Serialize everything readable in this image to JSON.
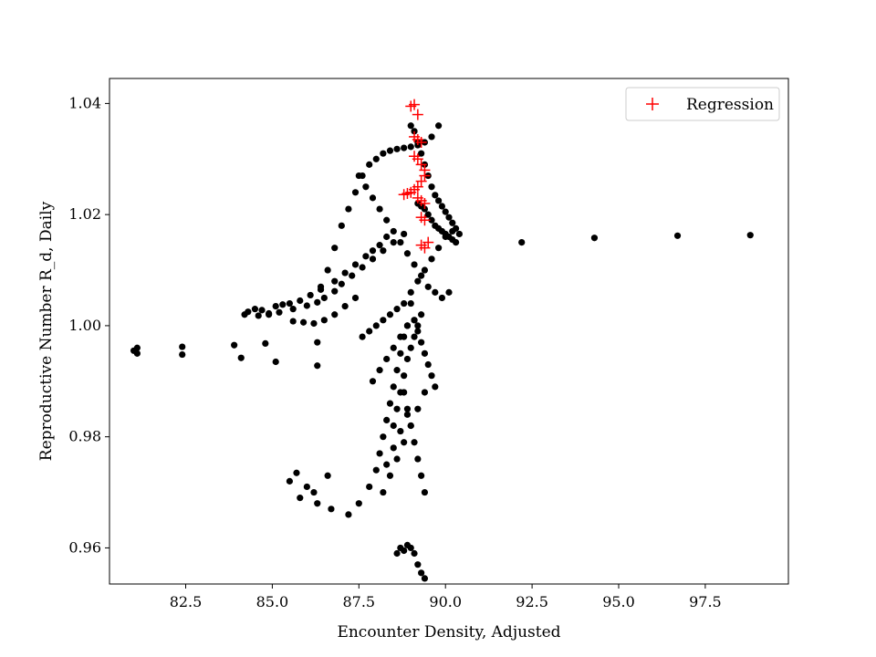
{
  "chart_data": {
    "type": "scatter",
    "xlabel": "Encounter Density, Adjusted",
    "ylabel": "Reproductive Number R_d, Daily",
    "xlim": [
      80.3,
      99.9
    ],
    "ylim": [
      0.9535,
      1.0445
    ],
    "xticks": [
      82.5,
      85.0,
      87.5,
      90.0,
      92.5,
      95.0,
      97.5
    ],
    "xtick_labels": [
      "82.5",
      "85.0",
      "87.5",
      "90.0",
      "92.5",
      "95.0",
      "97.5"
    ],
    "yticks": [
      0.96,
      0.98,
      1.0,
      1.02,
      1.04
    ],
    "ytick_labels": [
      "0.96",
      "0.98",
      "1.00",
      "1.02",
      "1.04"
    ],
    "legend": {
      "position": "upper-right",
      "entries": [
        {
          "label": "Regression",
          "color": "#ff0000",
          "marker": "+"
        }
      ]
    },
    "grid": false,
    "series": [
      {
        "marker": "dot",
        "color": "#000000",
        "x": [
          81.0,
          81.1,
          81.1,
          82.4,
          82.4,
          83.9,
          84.1,
          84.8,
          85.1,
          86.3,
          86.3,
          84.2,
          84.3,
          84.5,
          84.7,
          84.9,
          85.1,
          85.3,
          85.5,
          85.8,
          86.1,
          86.4,
          86.8,
          87.1,
          87.4,
          87.7,
          87.9,
          88.1,
          88.3,
          84.6,
          84.9,
          85.2,
          85.6,
          86.0,
          86.3,
          86.5,
          86.8,
          87.0,
          87.3,
          87.6,
          87.9,
          88.2,
          88.5,
          88.8,
          85.6,
          85.9,
          86.2,
          86.5,
          86.8,
          87.1,
          87.4,
          87.5,
          87.7,
          87.9,
          88.1,
          88.3,
          88.5,
          88.7,
          88.9,
          89.1,
          89.3,
          89.5,
          89.7,
          89.9,
          90.1,
          86.4,
          86.6,
          86.8,
          87.0,
          87.2,
          87.4,
          87.6,
          87.8,
          88.0,
          88.2,
          88.4,
          88.6,
          88.8,
          89.0,
          89.2,
          89.4,
          89.6,
          89.8,
          87.6,
          87.8,
          88.0,
          88.2,
          88.4,
          88.6,
          88.8,
          89.0,
          89.2,
          89.4,
          89.6,
          89.8,
          90.0,
          90.2,
          85.5,
          85.8,
          86.2,
          86.6,
          86.3,
          86.0,
          85.7,
          86.7,
          87.2,
          87.5,
          87.8,
          88.0,
          88.1,
          88.2,
          88.3,
          88.4,
          88.5,
          88.6,
          88.7,
          88.8,
          88.9,
          88.6,
          88.7,
          88.8,
          88.9,
          89.0,
          89.1,
          89.2,
          89.3,
          89.4,
          89.0,
          89.1,
          89.2,
          89.3,
          89.4,
          89.5,
          89.6,
          89.7,
          89.8,
          89.9,
          90.0,
          90.1,
          90.2,
          90.3,
          90.4,
          89.2,
          89.3,
          89.4,
          89.5,
          89.6,
          89.7,
          89.8,
          89.9,
          90.0,
          90.1,
          90.2,
          90.3,
          89.0,
          89.1,
          89.2,
          89.3,
          89.4,
          89.5,
          89.6,
          89.7,
          88.5,
          88.6,
          88.7,
          88.8,
          88.9,
          89.0,
          89.1,
          89.2,
          89.3,
          88.8,
          88.9,
          89.0,
          89.1,
          89.2,
          89.3,
          89.4,
          88.2,
          88.4,
          88.6,
          88.8,
          89.0,
          89.2,
          89.4,
          87.9,
          88.1,
          88.3,
          88.5,
          88.7,
          88.9,
          89.1,
          88.3,
          88.5,
          88.7,
          88.9,
          92.2,
          94.3,
          96.7,
          98.8
        ],
        "y": [
          0.9955,
          0.996,
          0.995,
          0.9962,
          0.9948,
          0.9965,
          0.9942,
          0.9968,
          0.9935,
          0.997,
          0.9928,
          1.002,
          1.0025,
          1.003,
          1.0028,
          1.0022,
          1.0035,
          1.0038,
          1.004,
          1.0045,
          1.0055,
          1.007,
          1.008,
          1.0095,
          1.011,
          1.0125,
          1.0135,
          1.0145,
          1.016,
          1.0018,
          1.002,
          1.0024,
          1.003,
          1.0036,
          1.0042,
          1.005,
          1.0062,
          1.0075,
          1.009,
          1.0105,
          1.012,
          1.0135,
          1.015,
          1.0165,
          1.0008,
          1.0006,
          1.0004,
          1.001,
          1.002,
          1.0035,
          1.005,
          1.027,
          1.025,
          1.023,
          1.021,
          1.019,
          1.017,
          1.015,
          1.013,
          1.011,
          1.009,
          1.007,
          1.006,
          1.005,
          1.006,
          1.0065,
          1.01,
          1.014,
          1.018,
          1.021,
          1.024,
          1.027,
          1.029,
          1.03,
          1.031,
          1.0315,
          1.0318,
          1.032,
          1.0322,
          1.0325,
          1.033,
          1.034,
          1.036,
          0.998,
          0.999,
          1.0,
          1.001,
          1.002,
          1.003,
          1.004,
          1.006,
          1.008,
          1.01,
          1.012,
          1.014,
          1.016,
          1.017,
          0.972,
          0.969,
          0.97,
          0.973,
          0.968,
          0.971,
          0.9735,
          0.967,
          0.966,
          0.968,
          0.971,
          0.974,
          0.977,
          0.98,
          0.983,
          0.986,
          0.989,
          0.992,
          0.995,
          0.998,
          1.0,
          0.959,
          0.96,
          0.9595,
          0.9605,
          0.96,
          0.959,
          0.957,
          0.9555,
          0.9545,
          1.036,
          1.035,
          1.033,
          1.031,
          1.029,
          1.027,
          1.025,
          1.0235,
          1.0225,
          1.0215,
          1.0205,
          1.0195,
          1.0185,
          1.0175,
          1.0165,
          1.022,
          1.0215,
          1.021,
          1.02,
          1.019,
          1.018,
          1.0175,
          1.017,
          1.0165,
          1.016,
          1.0155,
          1.015,
          1.004,
          1.001,
          0.999,
          0.997,
          0.995,
          0.993,
          0.991,
          0.989,
          0.982,
          0.985,
          0.988,
          0.991,
          0.994,
          0.996,
          0.998,
          1.0,
          1.002,
          0.988,
          0.985,
          0.982,
          0.979,
          0.976,
          0.973,
          0.97,
          0.97,
          0.973,
          0.976,
          0.979,
          0.982,
          0.985,
          0.988,
          0.99,
          0.992,
          0.994,
          0.996,
          0.998,
          1.0,
          1.001,
          0.975,
          0.978,
          0.981,
          0.984,
          1.015,
          1.0158,
          1.0162,
          1.0163
        ]
      },
      {
        "name": "Regression",
        "marker": "+",
        "color": "#ff0000",
        "x": [
          89.0,
          89.1,
          89.2,
          89.1,
          89.2,
          89.3,
          89.1,
          89.2,
          89.3,
          89.4,
          89.4,
          89.3,
          89.2,
          89.1,
          89.0,
          88.9,
          88.8,
          89.2,
          89.3,
          89.4,
          89.3,
          89.4,
          89.5,
          89.3,
          89.4
        ],
        "y": [
          1.0395,
          1.0398,
          1.038,
          1.034,
          1.0335,
          1.033,
          1.0305,
          1.03,
          1.029,
          1.028,
          1.027,
          1.026,
          1.025,
          1.0245,
          1.024,
          1.0238,
          1.0236,
          1.023,
          1.0225,
          1.022,
          1.0195,
          1.019,
          1.015,
          1.0145,
          1.014
        ]
      }
    ]
  }
}
